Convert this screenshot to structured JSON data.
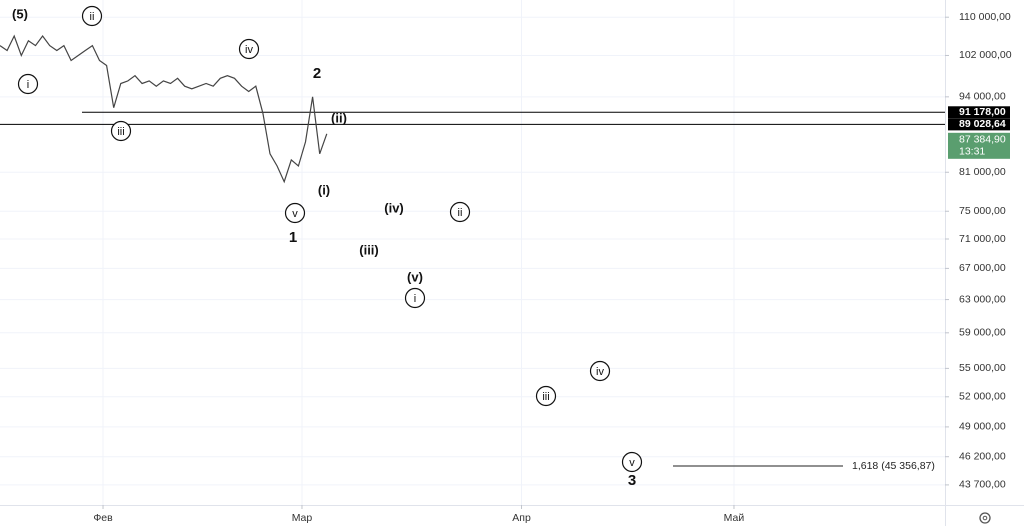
{
  "chart_data": {
    "type": "line",
    "log_scale": true,
    "grid": true,
    "xlim": [
      0,
      133
    ],
    "xticks": [
      {
        "value": 14.5,
        "label": "Фев"
      },
      {
        "value": 42.5,
        "label": "Мар"
      },
      {
        "value": 73.4,
        "label": "Апр"
      },
      {
        "value": 103.3,
        "label": "Май"
      }
    ],
    "ylim": [
      42000,
      113800
    ],
    "yticks": [
      {
        "value": 110000,
        "label": "110 000,00"
      },
      {
        "value": 102000,
        "label": "102 000,00"
      },
      {
        "value": 94000,
        "label": "94 000,00"
      },
      {
        "value": 81000,
        "label": "81 000,00"
      },
      {
        "value": 75000,
        "label": "75 000,00"
      },
      {
        "value": 71000,
        "label": "71 000,00"
      },
      {
        "value": 67000,
        "label": "67 000,00"
      },
      {
        "value": 63000,
        "label": "63 000,00"
      },
      {
        "value": 59000,
        "label": "59 000,00"
      },
      {
        "value": 55000,
        "label": "55 000,00"
      },
      {
        "value": 52000,
        "label": "52 000,00"
      },
      {
        "value": 49000,
        "label": "49 000,00"
      },
      {
        "value": 46200,
        "label": "46 200,00"
      },
      {
        "value": 43700,
        "label": "43 700,00"
      }
    ],
    "series": [
      {
        "color": "#444444",
        "x": [
          0,
          1,
          2,
          3,
          4,
          5,
          6,
          7,
          8,
          9,
          10,
          11,
          12,
          13,
          14,
          15,
          16,
          17,
          18,
          19,
          20,
          21,
          22,
          23,
          24,
          25,
          26,
          27,
          28,
          29,
          30,
          31,
          32,
          33,
          34,
          35,
          36,
          37,
          38,
          39,
          40,
          41,
          42,
          43,
          44,
          45,
          46
        ],
        "values": [
          104000,
          103000,
          106000,
          102000,
          105000,
          104000,
          106000,
          104000,
          103000,
          104000,
          101000,
          102000,
          103000,
          104000,
          101000,
          100000,
          92000,
          96500,
          97000,
          98000,
          96500,
          97000,
          96000,
          97000,
          96500,
          97500,
          96000,
          95500,
          96000,
          96500,
          96000,
          97500,
          98000,
          97500,
          96000,
          95000,
          96000,
          91000,
          84000,
          82000,
          79500,
          83000,
          82000,
          86000,
          94000,
          84000,
          87384.9
        ]
      }
    ],
    "price_lines": [
      {
        "value": 91178,
        "label": "91 178,00"
      },
      {
        "value": 89028.64,
        "label": "89 028,64"
      }
    ],
    "current_price": {
      "value": 87384.9,
      "label": "87 384,90",
      "time": "13:31",
      "color": "#5a9e6f"
    },
    "fib_level": {
      "value": 45356.87,
      "label": "1,618 (45 356,87)"
    },
    "annotations": [
      "(5)",
      "ii",
      "i",
      "iv",
      "iii",
      "2",
      "(ii)",
      "(i)",
      "v",
      "1",
      "(iv)",
      "ii",
      "(iii)",
      "(v)",
      "i",
      "iv",
      "iii",
      "v",
      "3"
    ]
  }
}
